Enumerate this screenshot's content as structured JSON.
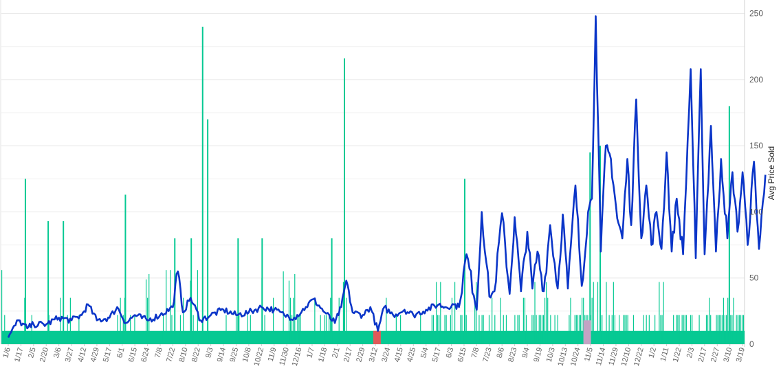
{
  "chart_data": {
    "type": "bar-line combo",
    "y_axis": {
      "label": "Avg Price Sold",
      "ticks": [
        0,
        50,
        100,
        150,
        200,
        250
      ],
      "range": [
        0,
        255
      ],
      "position": "right"
    },
    "x_axis": {
      "tick_labels": [
        "1/6",
        "1/17",
        "2/5",
        "2/20",
        "3/6",
        "3/27",
        "4/12",
        "4/29",
        "5/17",
        "6/1",
        "6/15",
        "6/24",
        "7/8",
        "7/22",
        "8/10",
        "8/22",
        "9/3",
        "9/14",
        "9/25",
        "10/8",
        "10/22",
        "11/9",
        "11/30",
        "12/16",
        "1/7",
        "1/18",
        "2/1",
        "2/17",
        "2/29",
        "3/12",
        "3/24",
        "4/15",
        "4/25",
        "5/4",
        "5/17",
        "6/3",
        "6/15",
        "7/8",
        "7/23",
        "8/6",
        "8/23",
        "9/4",
        "9/19",
        "10/3",
        "10/13",
        "10/24",
        "11/5",
        "11/14",
        "11/29",
        "12/10",
        "12/22",
        "1/2",
        "1/11",
        "1/22",
        "2/3",
        "2/17",
        "2/27",
        "3/10",
        "3/19"
      ]
    },
    "colors": {
      "bars": "#06c993",
      "line": "#0a35c8",
      "highlight_red": "#e05a5a",
      "highlight_purple": "#c4a3c4",
      "grid": "#e6e6e6"
    },
    "bars": {
      "series_name": "",
      "base_level": 10,
      "tall_spikes": [
        {
          "tick": 1.3,
          "value": 125
        },
        {
          "tick": 3.1,
          "value": 93
        },
        {
          "tick": 4.3,
          "value": 93
        },
        {
          "tick": 9.2,
          "value": 113
        },
        {
          "tick": 15.3,
          "value": 240
        },
        {
          "tick": 15.7,
          "value": 170
        },
        {
          "tick": 13.1,
          "value": 80
        },
        {
          "tick": 14.4,
          "value": 80
        },
        {
          "tick": 18.1,
          "value": 80
        },
        {
          "tick": 20.0,
          "value": 80
        },
        {
          "tick": 25.5,
          "value": 80
        },
        {
          "tick": 26.5,
          "value": 216
        },
        {
          "tick": 36.0,
          "value": 125
        },
        {
          "tick": 45.9,
          "value": 145
        },
        {
          "tick": 46.7,
          "value": 150
        },
        {
          "tick": 56.9,
          "value": 180
        }
      ]
    },
    "line": {
      "series_name": "",
      "keypoints": [
        [
          0.0,
          5
        ],
        [
          0.8,
          18
        ],
        [
          1.5,
          12
        ],
        [
          2.0,
          15
        ],
        [
          3.0,
          15
        ],
        [
          4.0,
          20
        ],
        [
          5.0,
          18
        ],
        [
          5.8,
          22
        ],
        [
          6.3,
          30
        ],
        [
          7.0,
          18
        ],
        [
          8.0,
          20
        ],
        [
          8.6,
          28
        ],
        [
          9.3,
          16
        ],
        [
          10.0,
          22
        ],
        [
          11.0,
          18
        ],
        [
          12.0,
          22
        ],
        [
          13.0,
          28
        ],
        [
          13.4,
          55
        ],
        [
          13.8,
          24
        ],
        [
          14.4,
          35
        ],
        [
          15.2,
          18
        ],
        [
          16.0,
          22
        ],
        [
          17.0,
          26
        ],
        [
          18.0,
          22
        ],
        [
          19.0,
          24
        ],
        [
          20.0,
          28
        ],
        [
          21.0,
          26
        ],
        [
          21.8,
          22
        ],
        [
          22.6,
          20
        ],
        [
          23.5,
          28
        ],
        [
          24.1,
          34
        ],
        [
          25.0,
          24
        ],
        [
          25.8,
          16
        ],
        [
          26.3,
          28
        ],
        [
          26.7,
          48
        ],
        [
          27.2,
          24
        ],
        [
          28.0,
          22
        ],
        [
          28.6,
          28
        ],
        [
          29.2,
          10
        ],
        [
          29.7,
          28
        ],
        [
          30.4,
          22
        ],
        [
          31.3,
          26
        ],
        [
          32.0,
          22
        ],
        [
          33.0,
          26
        ],
        [
          34.0,
          30
        ],
        [
          34.5,
          28
        ],
        [
          35.2,
          30
        ],
        [
          35.6,
          28
        ],
        [
          36.2,
          68
        ],
        [
          37.0,
          26
        ],
        [
          37.4,
          100
        ],
        [
          38.0,
          36
        ],
        [
          38.4,
          40
        ],
        [
          39.0,
          99
        ],
        [
          39.6,
          38
        ],
        [
          40.0,
          96
        ],
        [
          40.5,
          40
        ],
        [
          41.0,
          85
        ],
        [
          41.4,
          42
        ],
        [
          41.8,
          70
        ],
        [
          42.3,
          40
        ],
        [
          42.8,
          90
        ],
        [
          43.4,
          42
        ],
        [
          43.8,
          98
        ],
        [
          44.2,
          42
        ],
        [
          44.8,
          120
        ],
        [
          45.3,
          44
        ],
        [
          45.8,
          100
        ],
        [
          46.1,
          110
        ],
        [
          46.4,
          248
        ],
        [
          46.8,
          70
        ],
        [
          47.2,
          150
        ],
        [
          47.6,
          140
        ],
        [
          48.1,
          95
        ],
        [
          48.5,
          80
        ],
        [
          48.9,
          140
        ],
        [
          49.2,
          90
        ],
        [
          49.6,
          185
        ],
        [
          50.0,
          80
        ],
        [
          50.4,
          120
        ],
        [
          50.8,
          75
        ],
        [
          51.2,
          100
        ],
        [
          51.6,
          72
        ],
        [
          52.0,
          145
        ],
        [
          52.4,
          70
        ],
        [
          52.8,
          110
        ],
        [
          53.3,
          68
        ],
        [
          53.9,
          208
        ],
        [
          54.3,
          65
        ],
        [
          54.7,
          208
        ],
        [
          55.0,
          68
        ],
        [
          55.5,
          165
        ],
        [
          55.9,
          70
        ],
        [
          56.3,
          140
        ],
        [
          56.8,
          80
        ],
        [
          57.2,
          130
        ],
        [
          57.6,
          85
        ],
        [
          58.0,
          130
        ],
        [
          58.4,
          75
        ],
        [
          58.9,
          138
        ],
        [
          59.3,
          72
        ],
        [
          59.8,
          128
        ]
      ],
      "seed": 7
    },
    "highlights": [
      {
        "tick": 29.1,
        "color_key": "highlight_red",
        "value": 10,
        "label": ""
      },
      {
        "tick": 45.7,
        "color_key": "highlight_purple",
        "value": 18,
        "label": ""
      }
    ]
  }
}
